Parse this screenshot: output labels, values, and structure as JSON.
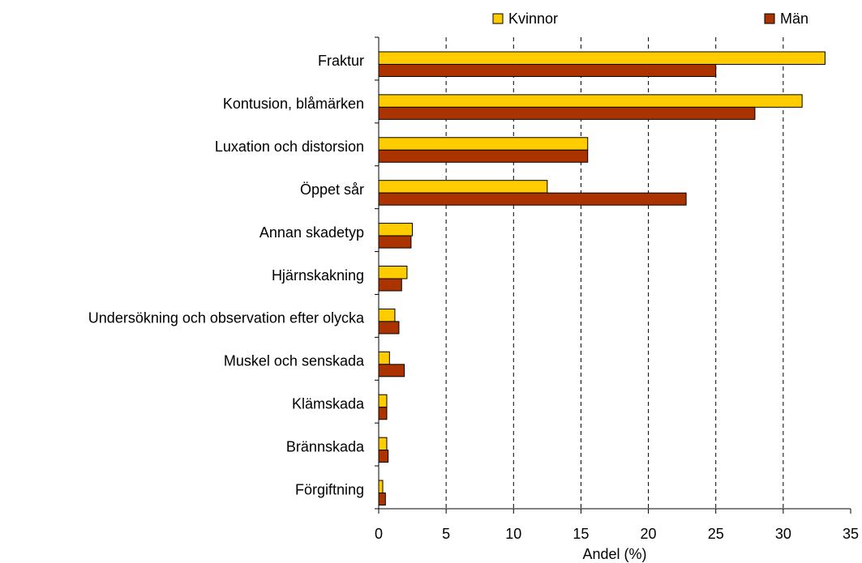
{
  "chart_data": {
    "type": "hbar",
    "categories": [
      "Fraktur",
      "Kontusion, blåmärken",
      "Luxation och distorsion",
      "Öppet sår",
      "Annan skadetyp",
      "Hjärnskakning",
      "Undersökning och observation efter olycka",
      "Muskel och senskada",
      "Klämskada",
      "Brännskada",
      "Förgiftning"
    ],
    "series": [
      {
        "name": "Kvinnor",
        "color": "#ffcc00",
        "values": [
          33.1,
          31.4,
          15.5,
          12.5,
          2.5,
          2.1,
          1.2,
          0.8,
          0.6,
          0.6,
          0.3
        ]
      },
      {
        "name": "Män",
        "color": "#aa3300",
        "values": [
          25.0,
          27.9,
          15.5,
          22.8,
          2.4,
          1.7,
          1.5,
          1.9,
          0.6,
          0.7,
          0.5
        ]
      }
    ],
    "xlabel": "Andel (%)",
    "xlim": [
      0,
      35
    ],
    "xticks": [
      0,
      5,
      10,
      15,
      20,
      25,
      30,
      35
    ],
    "grid": true
  }
}
